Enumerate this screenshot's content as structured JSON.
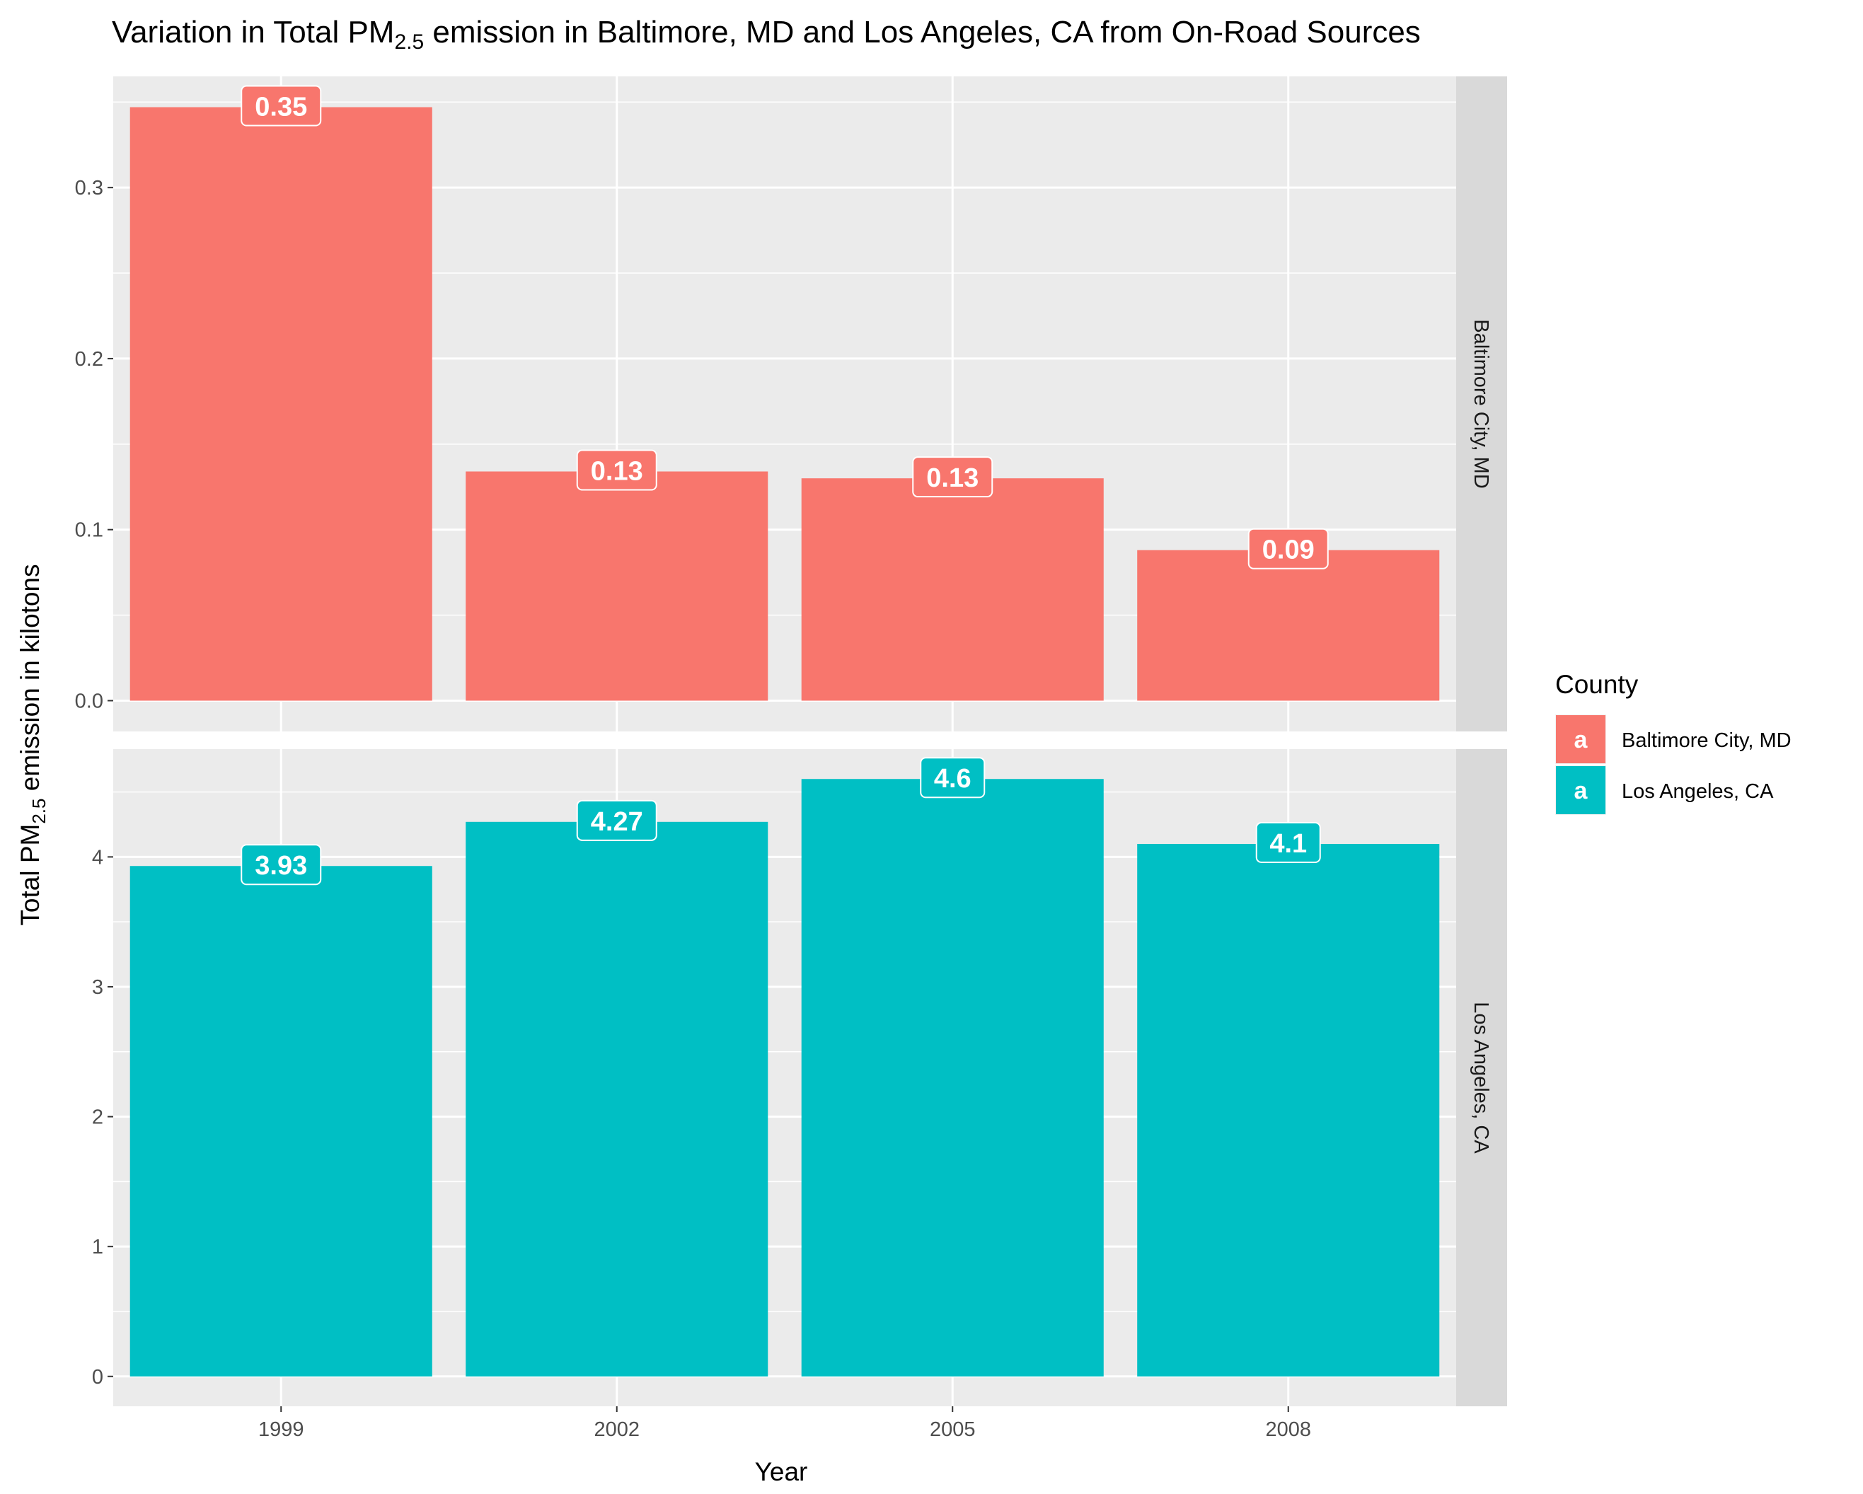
{
  "chart_data": {
    "type": "bar",
    "title": {
      "prefix": "Variation in Total PM",
      "subscript": "2.5",
      "suffix": " emission in Baltimore, MD and Los Angeles, CA from On-Road Sources"
    },
    "xlabel": "Year",
    "ylabel": {
      "prefix": "Total PM",
      "subscript": "2.5",
      "suffix": " emission in kilotons"
    },
    "categories": [
      "1999",
      "2002",
      "2005",
      "2008"
    ],
    "facets": [
      {
        "name": "Baltimore City, MD",
        "ylim": [
          -0.018,
          0.365
        ],
        "yticks": [
          0.0,
          0.1,
          0.2,
          0.3
        ],
        "ytick_labels": [
          "0.0",
          "0.1",
          "0.2",
          "0.3"
        ],
        "values": [
          0.347,
          0.134,
          0.13,
          0.088
        ],
        "labels": [
          "0.35",
          "0.13",
          "0.13",
          "0.09"
        ]
      },
      {
        "name": "Los Angeles, CA",
        "ylim": [
          -0.23,
          4.83
        ],
        "yticks": [
          0,
          1,
          2,
          3,
          4
        ],
        "ytick_labels": [
          "0",
          "1",
          "2",
          "3",
          "4"
        ],
        "values": [
          3.93,
          4.27,
          4.6,
          4.1
        ],
        "labels": [
          "3.93",
          "4.27",
          "4.6",
          "4.1"
        ]
      }
    ],
    "legend": {
      "title": "County",
      "position": "right",
      "key_glyph": "a",
      "entries": [
        "Baltimore City, MD",
        "Los Angeles, CA"
      ]
    },
    "colors": {
      "Baltimore City, MD": "#F8766D",
      "Los Angeles, CA": "#00BFC4",
      "panel_background": "#EBEBEB",
      "grid": "#FFFFFF",
      "strip_background": "#D9D9D9"
    },
    "grid": true
  }
}
